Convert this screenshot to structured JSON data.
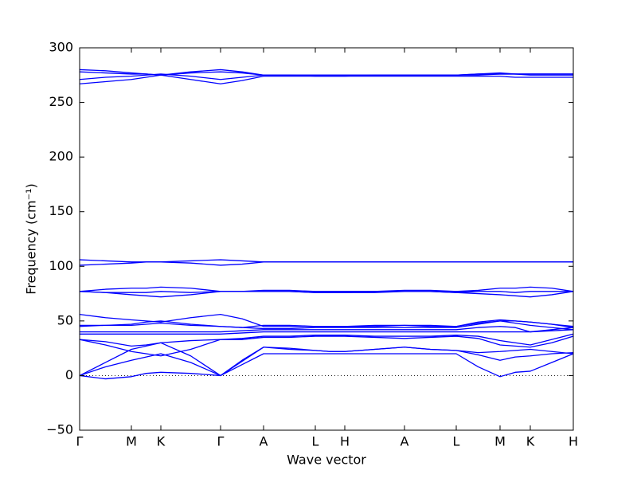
{
  "chart_data": {
    "type": "line",
    "xlabel": "Wave vector",
    "ylabel": "Frequency (cm⁻¹)",
    "color": "#0000ff",
    "xlim": [
      0,
      6.2
    ],
    "ylim": [
      -50,
      300
    ],
    "yticks": [
      {
        "value": -50,
        "label": "−50"
      },
      0,
      50,
      100,
      150,
      200,
      250,
      300
    ],
    "xticks": [
      {
        "value": 0,
        "label": "Γ"
      },
      {
        "value": 0.65,
        "label": "M"
      },
      {
        "value": 1.02,
        "label": "K"
      },
      {
        "value": 1.77,
        "label": "Γ"
      },
      {
        "value": 2.31,
        "label": "A"
      },
      {
        "value": 2.96,
        "label": "L"
      },
      {
        "value": 3.33,
        "label": "H"
      },
      {
        "value": 4.08,
        "label": "A"
      },
      {
        "value": 4.73,
        "label": "L"
      },
      {
        "value": 5.28,
        "label": "M"
      },
      {
        "value": 5.66,
        "label": "K"
      },
      {
        "value": 6.2,
        "label": "H"
      }
    ],
    "hline": 0,
    "x": [
      0,
      0.325,
      0.65,
      0.835,
      1.02,
      1.395,
      1.77,
      2.04,
      2.31,
      2.635,
      2.96,
      3.145,
      3.33,
      3.705,
      4.08,
      4.405,
      4.73,
      5.005,
      5.28,
      5.47,
      5.66,
      5.93,
      6.2
    ],
    "series": [
      {
        "values": [
          0,
          -3,
          -1,
          2,
          3,
          2,
          0,
          10,
          20,
          20,
          20,
          20,
          20,
          20,
          20,
          20,
          20,
          8,
          -1,
          3,
          4,
          12,
          20
        ]
      },
      {
        "values": [
          0,
          8,
          14,
          17,
          20,
          12,
          0,
          13,
          26,
          24,
          23,
          22,
          22,
          24,
          26,
          24,
          23,
          19,
          14,
          17,
          18,
          20,
          21
        ]
      },
      {
        "values": [
          0,
          12,
          24,
          27,
          30,
          18,
          0,
          14,
          26,
          25,
          23,
          22,
          22,
          24,
          26,
          24,
          23,
          21,
          22,
          23,
          24,
          22,
          20
        ]
      },
      {
        "values": [
          33,
          28,
          22,
          20,
          18,
          24,
          33,
          33,
          35,
          35,
          36,
          36,
          36,
          35,
          34,
          35,
          36,
          34,
          28,
          27,
          26,
          30,
          36
        ]
      },
      {
        "values": [
          33,
          31,
          27,
          28,
          30,
          32,
          33,
          34,
          36,
          36,
          37,
          37,
          37,
          36,
          36,
          36,
          37,
          36,
          32,
          30,
          28,
          33,
          38
        ]
      },
      {
        "values": [
          38,
          38,
          38,
          38,
          38,
          38,
          38,
          39,
          40,
          40,
          40,
          40,
          40,
          40,
          40,
          40,
          40,
          40,
          40,
          40,
          40,
          41,
          42
        ]
      },
      {
        "values": [
          40,
          40,
          40,
          40,
          40,
          40,
          40,
          41,
          42,
          42,
          42,
          42,
          42,
          42,
          42,
          42,
          42,
          44,
          45,
          44,
          40,
          42,
          44
        ]
      },
      {
        "values": [
          45,
          46,
          46,
          47,
          48,
          46,
          45,
          44,
          43,
          43,
          44,
          44,
          44,
          44,
          44,
          44,
          44,
          47,
          50,
          48,
          46,
          44,
          42
        ]
      },
      {
        "values": [
          56,
          53,
          51,
          50,
          49,
          53,
          56,
          52,
          45,
          45,
          45,
          45,
          45,
          45,
          46,
          45,
          45,
          49,
          51,
          50,
          49,
          47,
          45
        ]
      },
      {
        "values": [
          46,
          46,
          47,
          49,
          50,
          47,
          45,
          44,
          46,
          46,
          45,
          45,
          45,
          46,
          46,
          46,
          45,
          48,
          50,
          50,
          49,
          47,
          44
        ]
      },
      {
        "values": [
          77,
          76,
          74,
          73,
          72,
          74,
          77,
          77,
          77,
          77,
          76,
          76,
          76,
          76,
          77,
          77,
          76,
          75,
          74,
          73,
          72,
          74,
          77
        ]
      },
      {
        "values": [
          77,
          79,
          80,
          80,
          81,
          80,
          77,
          77,
          78,
          78,
          77,
          77,
          77,
          77,
          78,
          78,
          77,
          78,
          80,
          80,
          81,
          80,
          77
        ]
      },
      {
        "values": [
          77,
          76,
          76,
          76,
          77,
          76,
          77,
          77,
          77,
          77,
          76,
          76,
          76,
          77,
          77,
          77,
          76,
          77,
          77,
          76,
          77,
          77,
          77
        ]
      },
      {
        "values": [
          106,
          105,
          104,
          104,
          104,
          105,
          106,
          105,
          104,
          104,
          104,
          104,
          104,
          104,
          104,
          104,
          104,
          104,
          104,
          104,
          104,
          104,
          104
        ]
      },
      {
        "values": [
          101,
          102,
          103,
          104,
          104,
          103,
          101,
          102,
          104,
          104,
          104,
          104,
          104,
          104,
          104,
          104,
          104,
          104,
          104,
          104,
          104,
          104,
          104
        ]
      },
      {
        "values": [
          267,
          269,
          271,
          273,
          275,
          271,
          267,
          270,
          274,
          274,
          274,
          274,
          274,
          274,
          274,
          274,
          274,
          274,
          274,
          273,
          273,
          273,
          273
        ]
      },
      {
        "values": [
          271,
          273,
          274,
          275,
          276,
          274,
          271,
          273,
          275,
          275,
          274,
          274,
          274,
          275,
          275,
          275,
          275,
          275,
          276,
          276,
          276,
          276,
          276
        ]
      },
      {
        "values": [
          278,
          277,
          276,
          276,
          275,
          277,
          278,
          277,
          275,
          275,
          275,
          275,
          275,
          275,
          275,
          275,
          275,
          276,
          277,
          276,
          275,
          275,
          275
        ]
      },
      {
        "values": [
          280,
          279,
          277,
          276,
          275,
          278,
          280,
          278,
          275,
          275,
          275,
          275,
          275,
          275,
          275,
          275,
          275,
          276,
          276,
          276,
          276,
          276,
          276
        ]
      }
    ]
  }
}
